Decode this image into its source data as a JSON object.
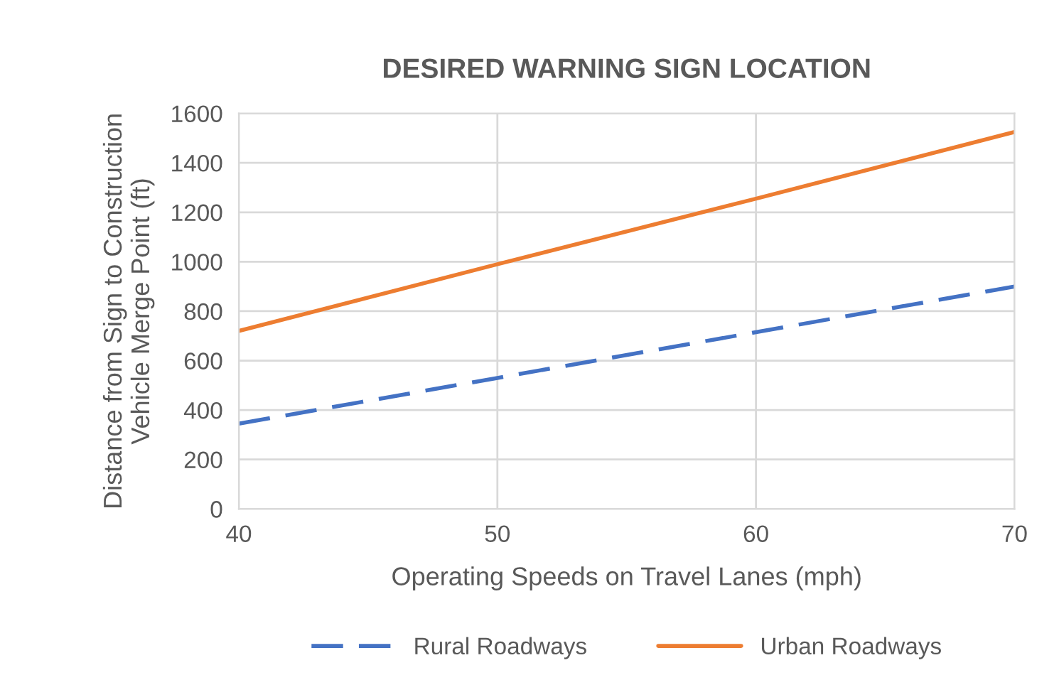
{
  "chart_data": {
    "type": "line",
    "title": "DESIRED WARNING SIGN LOCATION",
    "xlabel": "Operating Speeds on Travel Lanes (mph)",
    "ylabel": "Distance from Sign to Construction\nVehicle Merge Point (ft)",
    "x": [
      40,
      50,
      60,
      70
    ],
    "series": [
      {
        "name": "Rural Roadways",
        "color": "#4472c4",
        "line_style": "dashed",
        "values": [
          345,
          530,
          715,
          900
        ]
      },
      {
        "name": "Urban Roadways",
        "color": "#ed7d31",
        "line_style": "solid",
        "values": [
          720,
          990,
          1255,
          1525
        ]
      }
    ],
    "xlim": [
      40,
      70
    ],
    "xticks": [
      40,
      50,
      60,
      70
    ],
    "ylim": [
      0,
      1600
    ],
    "yticks": [
      0,
      200,
      400,
      600,
      800,
      1000,
      1200,
      1400,
      1600
    ],
    "grid": true,
    "legend": "bottom",
    "marker": "none"
  }
}
